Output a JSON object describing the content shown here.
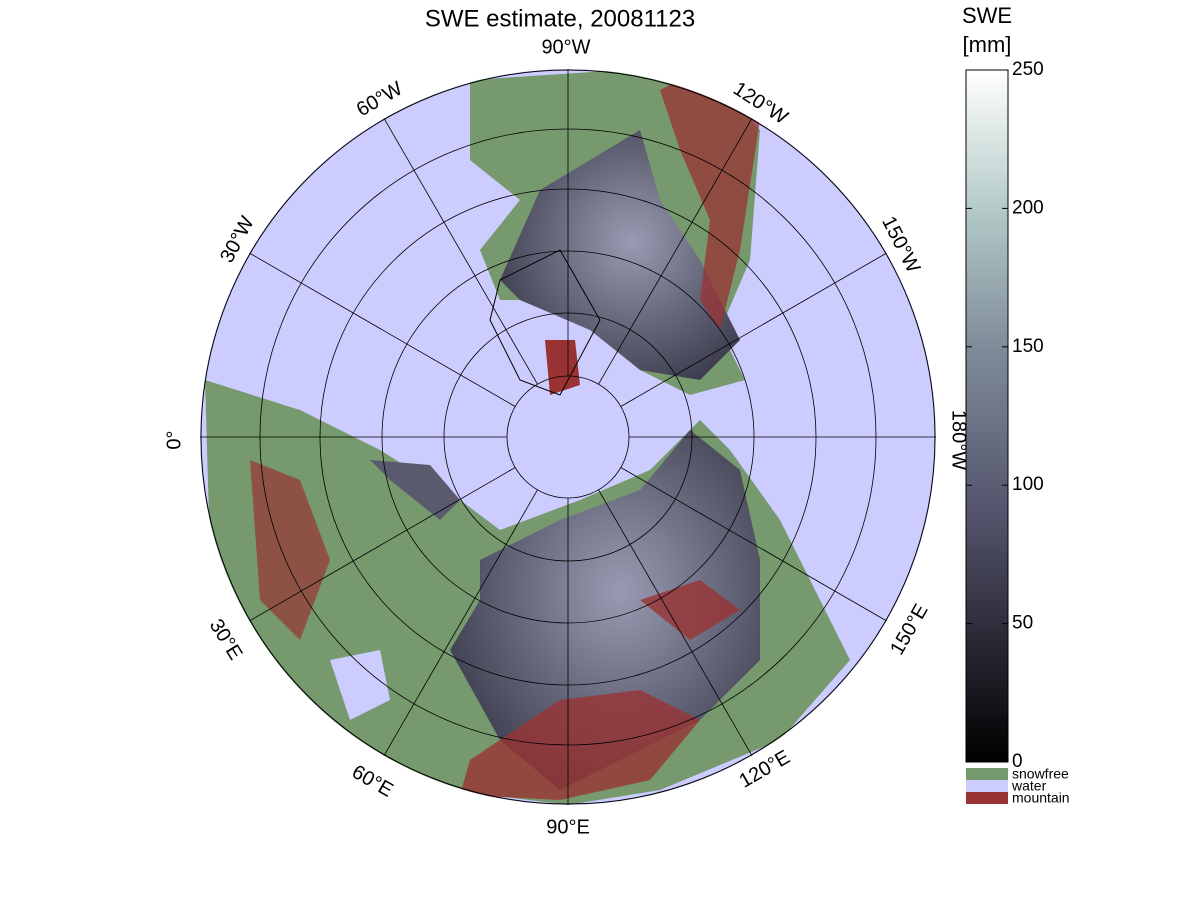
{
  "title": "SWE estimate, 20081123",
  "map": {
    "longitude_labels": [
      "90°W",
      "120°W",
      "150°W",
      "180°W",
      "150°E",
      "120°E",
      "90°E",
      "60°E",
      "30°E",
      "0°",
      "30°W",
      "60°W"
    ]
  },
  "colorbar": {
    "title": [
      "SWE",
      "[mm]"
    ],
    "clim": [
      0,
      250
    ],
    "ticks": [
      0,
      50,
      100,
      150,
      200,
      250
    ]
  },
  "legend": [
    {
      "label": "snowfree",
      "color": "#76996e"
    },
    {
      "label": "water",
      "color": "#ccccff"
    },
    {
      "label": "mountain",
      "color": "#993333"
    }
  ]
}
